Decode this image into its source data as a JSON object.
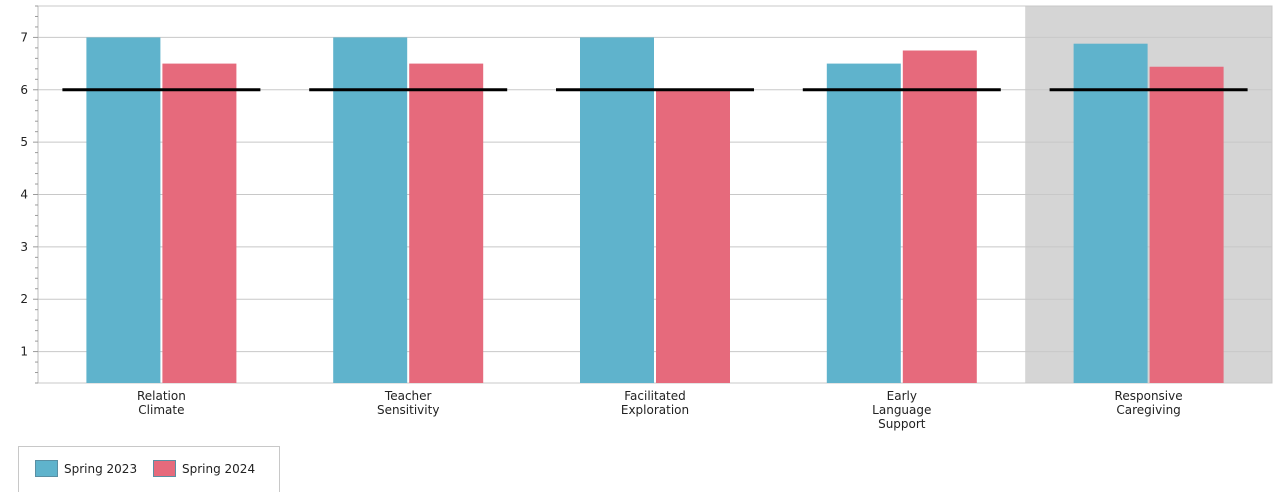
{
  "chart_data": {
    "type": "bar",
    "categories": [
      "Relation\nClimate",
      "Teacher\nSensitivity",
      "Facilitated\nExploration",
      "Early\nLanguage\nSupport",
      "Responsive\nCaregiving"
    ],
    "series": [
      {
        "name": "Spring 2023",
        "color": "#5fb3cc",
        "values": [
          7.0,
          7.0,
          7.0,
          6.5,
          6.88
        ]
      },
      {
        "name": "Spring 2024",
        "color": "#e66a7c",
        "values": [
          6.5,
          6.5,
          6.0,
          6.75,
          6.44
        ]
      }
    ],
    "benchmark": {
      "value": 6,
      "color": "#000000"
    },
    "highlighted_category_index": 4,
    "highlight_color": "#d5d5d5",
    "yticks": [
      1,
      2,
      3,
      4,
      5,
      6,
      7
    ],
    "ylim": [
      0.4,
      7.6
    ],
    "grid": true,
    "legend_position": "bottom-left"
  }
}
